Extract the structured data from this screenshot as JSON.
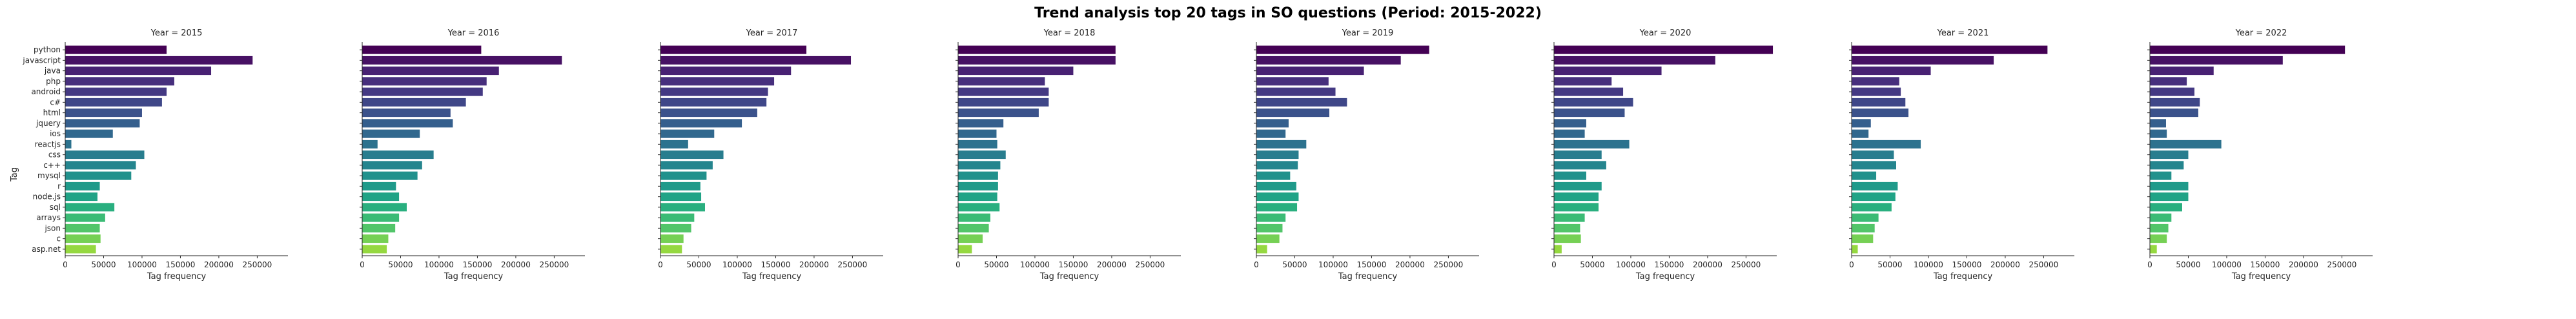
{
  "chart_data": {
    "type": "bar",
    "orientation": "horizontal",
    "title": "Trend analysis top 20 tags in SO questions (Period: 2015-2022)",
    "xlabel": "Tag frequency",
    "ylabel": "Tag",
    "xlim": [
      0,
      290000
    ],
    "xticks": [
      0,
      50000,
      100000,
      150000,
      200000,
      250000
    ],
    "grid": false,
    "legend": "none",
    "palette": [
      "#440154",
      "#471164",
      "#482173",
      "#472f7d",
      "#443983",
      "#3f4788",
      "#3b528b",
      "#355f8d",
      "#31688e",
      "#2c728e",
      "#287d8e",
      "#25858e",
      "#21918c",
      "#1f9a8a",
      "#20a386",
      "#29af7f",
      "#3bbb75",
      "#52c569",
      "#75d054",
      "#95d840",
      "#bddf26"
    ],
    "categories": [
      "python",
      "javascript",
      "java",
      "php",
      "android",
      "c#",
      "html",
      "jquery",
      "ios",
      "reactjs",
      "css",
      "c++",
      "mysql",
      "r",
      "node.js",
      "sql",
      "arrays",
      "json",
      "c",
      "asp.net"
    ],
    "panels": [
      {
        "title": "Year = 2015",
        "values": [
          132000,
          244000,
          190000,
          142000,
          132000,
          126000,
          100000,
          97000,
          62000,
          8000,
          103000,
          92000,
          86000,
          45000,
          42000,
          64000,
          52000,
          45000,
          46000,
          40000
        ]
      },
      {
        "title": "Year = 2016",
        "values": [
          155000,
          260000,
          178000,
          162000,
          157000,
          135000,
          115000,
          118000,
          75000,
          20000,
          93000,
          78000,
          72000,
          44000,
          48000,
          58000,
          48000,
          43000,
          34000,
          32000
        ]
      },
      {
        "title": "Year = 2017",
        "values": [
          190000,
          248000,
          170000,
          148000,
          140000,
          138000,
          126000,
          106000,
          70000,
          36000,
          82000,
          68000,
          60000,
          52000,
          53000,
          58000,
          44000,
          40000,
          30000,
          28000
        ]
      },
      {
        "title": "Year = 2018",
        "values": [
          205000,
          205000,
          150000,
          113000,
          118000,
          118000,
          105000,
          59000,
          50000,
          51000,
          62000,
          55000,
          52000,
          52000,
          51000,
          54000,
          42000,
          40000,
          32000,
          18000
        ]
      },
      {
        "title": "Year = 2019",
        "values": [
          225000,
          188000,
          140000,
          94000,
          103000,
          118000,
          95000,
          42000,
          38000,
          65000,
          55000,
          54000,
          44000,
          52000,
          55000,
          53000,
          38000,
          34000,
          30000,
          14000
        ]
      },
      {
        "title": "Year = 2020",
        "values": [
          285000,
          210000,
          140000,
          75000,
          90000,
          103000,
          92000,
          42000,
          40000,
          98000,
          62000,
          68000,
          42000,
          62000,
          58000,
          58000,
          40000,
          34000,
          35000,
          10000
        ]
      },
      {
        "title": "Year = 2021",
        "values": [
          255000,
          185000,
          103000,
          62000,
          64000,
          70000,
          74000,
          25000,
          22000,
          90000,
          55000,
          58000,
          32000,
          60000,
          57000,
          52000,
          35000,
          30000,
          28000,
          8000
        ]
      },
      {
        "title": "Year = 2022",
        "values": [
          254000,
          173000,
          83000,
          48000,
          58000,
          65000,
          63000,
          21000,
          22000,
          93000,
          50000,
          44000,
          28000,
          50000,
          50000,
          42000,
          28000,
          24000,
          22000,
          9000
        ]
      }
    ]
  }
}
